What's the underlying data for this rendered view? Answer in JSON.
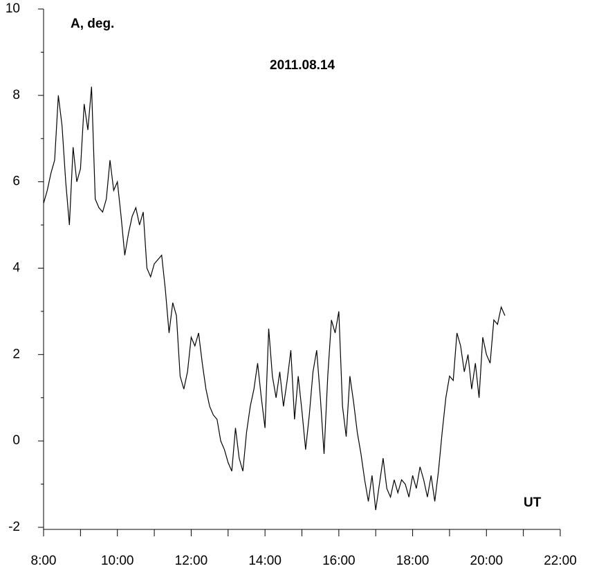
{
  "chart_data": {
    "type": "line",
    "title": "2011.08.14",
    "ylabel": "A, deg.",
    "xlabel": "UT",
    "x": [
      8.0,
      8.1,
      8.2,
      8.3,
      8.4,
      8.5,
      8.6,
      8.7,
      8.8,
      8.9,
      9.0,
      9.1,
      9.2,
      9.3,
      9.4,
      9.5,
      9.6,
      9.7,
      9.8,
      9.9,
      10.0,
      10.1,
      10.2,
      10.3,
      10.4,
      10.5,
      10.6,
      10.7,
      10.8,
      10.9,
      11.0,
      11.1,
      11.2,
      11.3,
      11.4,
      11.5,
      11.6,
      11.7,
      11.8,
      11.9,
      12.0,
      12.1,
      12.2,
      12.3,
      12.4,
      12.5,
      12.6,
      12.7,
      12.8,
      12.9,
      13.0,
      13.1,
      13.2,
      13.3,
      13.4,
      13.5,
      13.6,
      13.7,
      13.8,
      13.9,
      14.0,
      14.1,
      14.2,
      14.3,
      14.4,
      14.5,
      14.6,
      14.7,
      14.8,
      14.9,
      15.0,
      15.1,
      15.2,
      15.3,
      15.4,
      15.5,
      15.6,
      15.7,
      15.8,
      15.9,
      16.0,
      16.1,
      16.2,
      16.3,
      16.4,
      16.5,
      16.6,
      16.7,
      16.8,
      16.9,
      17.0,
      17.1,
      17.2,
      17.3,
      17.4,
      17.5,
      17.6,
      17.7,
      17.8,
      17.9,
      18.0,
      18.1,
      18.2,
      18.3,
      18.4,
      18.5,
      18.6,
      18.7,
      18.8,
      18.9,
      19.0,
      19.1,
      19.2,
      19.3,
      19.4,
      19.5,
      19.6,
      19.7,
      19.8,
      19.9,
      20.0,
      20.1,
      20.2,
      20.3,
      20.4,
      20.5
    ],
    "series": [
      {
        "color": "#000000",
        "values": [
          5.5,
          5.8,
          6.2,
          6.5,
          8.0,
          7.3,
          6.0,
          5.0,
          6.8,
          6.0,
          6.3,
          7.8,
          7.2,
          8.2,
          5.6,
          5.4,
          5.3,
          5.6,
          6.5,
          5.8,
          6.0,
          5.2,
          4.3,
          4.8,
          5.2,
          5.4,
          5.0,
          5.3,
          4.0,
          3.8,
          4.1,
          4.2,
          4.3,
          3.5,
          2.5,
          3.2,
          2.9,
          1.5,
          1.2,
          1.6,
          2.4,
          2.2,
          2.5,
          1.8,
          1.2,
          0.8,
          0.6,
          0.5,
          0.0,
          -0.2,
          -0.5,
          -0.7,
          0.3,
          -0.4,
          -0.7,
          0.2,
          0.8,
          1.2,
          1.8,
          1.0,
          0.3,
          2.6,
          1.5,
          1.0,
          1.6,
          0.8,
          1.4,
          2.1,
          0.5,
          1.5,
          0.7,
          -0.2,
          0.6,
          1.6,
          2.1,
          1.0,
          -0.3,
          1.5,
          2.8,
          2.5,
          3.0,
          0.8,
          0.1,
          1.5,
          0.9,
          0.2,
          -0.3,
          -0.9,
          -1.4,
          -0.8,
          -1.6,
          -1.0,
          -0.4,
          -1.1,
          -1.3,
          -0.9,
          -1.2,
          -0.9,
          -1.0,
          -1.3,
          -0.8,
          -1.1,
          -0.6,
          -0.9,
          -1.3,
          -0.8,
          -1.4,
          -0.7,
          0.2,
          1.0,
          1.5,
          1.4,
          2.5,
          2.2,
          1.6,
          2.0,
          1.2,
          1.8,
          1.0,
          2.4,
          2.0,
          1.8,
          2.8,
          2.7,
          3.1,
          2.9
        ]
      }
    ],
    "xlim": [
      8,
      22
    ],
    "xticks": [
      {
        "value": 8,
        "label": "8:00"
      },
      {
        "value": 10,
        "label": "10:00"
      },
      {
        "value": 12,
        "label": "12:00"
      },
      {
        "value": 14,
        "label": "14:00"
      },
      {
        "value": 16,
        "label": "16:00"
      },
      {
        "value": 18,
        "label": "18:00"
      },
      {
        "value": 20,
        "label": "20:00"
      },
      {
        "value": 22,
        "label": "22:00"
      }
    ],
    "minor_xticks": [
      9,
      11,
      13,
      15,
      17,
      19,
      21
    ],
    "ylim": [
      -2,
      10
    ],
    "yticks": [
      -2,
      0,
      2,
      4,
      6,
      8,
      10
    ],
    "minor_yticks": [
      -1,
      1,
      3,
      5,
      7,
      9
    ],
    "grid": false
  }
}
